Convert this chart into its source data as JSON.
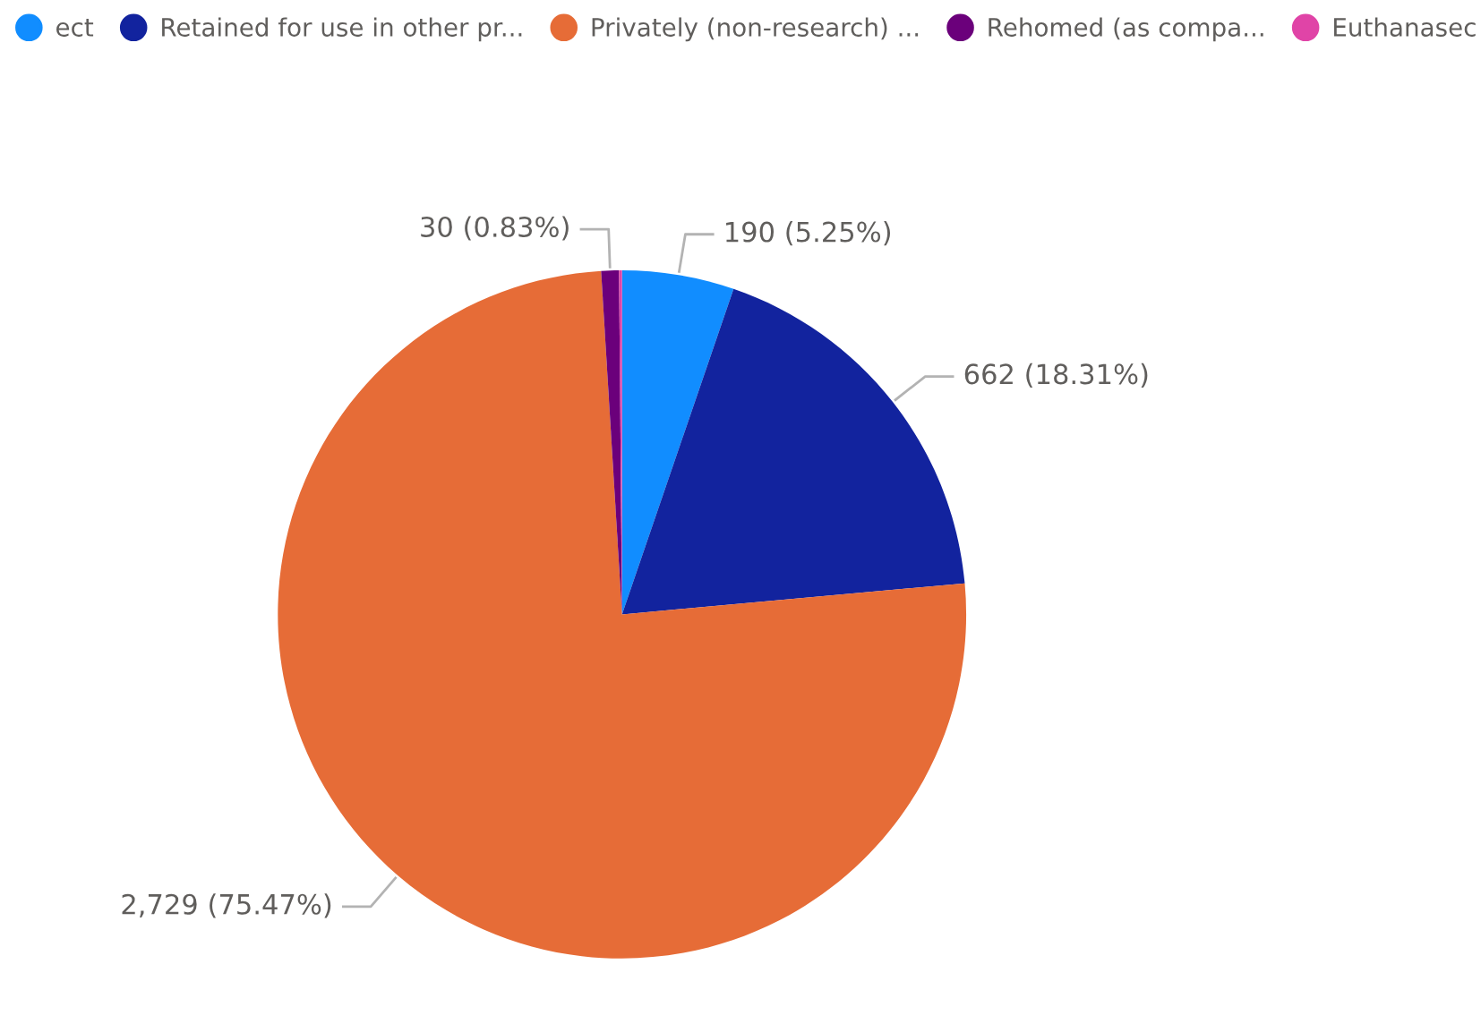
{
  "chart_data": {
    "type": "pie",
    "categories": [
      "ect",
      "Retained for use in other pr...",
      "Privately (non-research) ...",
      "Rehomed (as compa...",
      "Euthanasec"
    ],
    "values": [
      190,
      662,
      2729,
      30,
      5
    ],
    "colors": [
      "#118dff",
      "#12239e",
      "#e66c37",
      "#6b007b",
      "#e044a7"
    ],
    "value_labels": [
      "190 (5.25%)",
      "662 (18.31%)",
      "2,729 (75.47%)",
      "30 (0.83%)",
      null
    ],
    "legend": "top"
  }
}
